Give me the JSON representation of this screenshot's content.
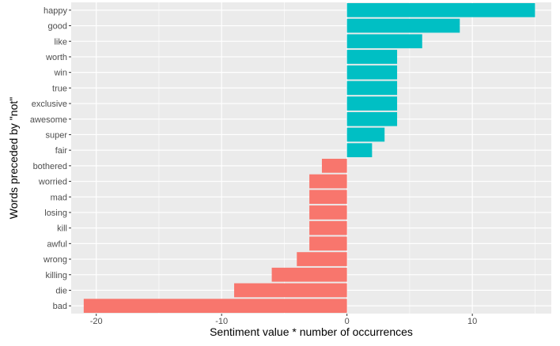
{
  "chart_data": {
    "type": "bar",
    "orientation": "horizontal",
    "title": "",
    "xlabel": "Sentiment value * number of occurrences",
    "ylabel": "Words preceded by \"not\"",
    "xlim": [
      -22,
      16.3
    ],
    "xticks": [
      -20,
      -10,
      0,
      10
    ],
    "grid": true,
    "legend": "none",
    "colors": {
      "positive": "#00BFC4",
      "negative": "#F8766D",
      "panel": "#EBEBEB",
      "grid": "#FFFFFF"
    },
    "categories": [
      "happy",
      "good",
      "like",
      "worth",
      "win",
      "true",
      "exclusive",
      "awesome",
      "super",
      "fair",
      "bothered",
      "worried",
      "mad",
      "losing",
      "kill",
      "awful",
      "wrong",
      "killing",
      "die",
      "bad"
    ],
    "values": [
      15,
      9,
      6,
      4,
      4,
      4,
      4,
      4,
      3,
      2,
      -2,
      -3,
      -3,
      -3,
      -3,
      -3,
      -4,
      -6,
      -9,
      -21
    ]
  }
}
